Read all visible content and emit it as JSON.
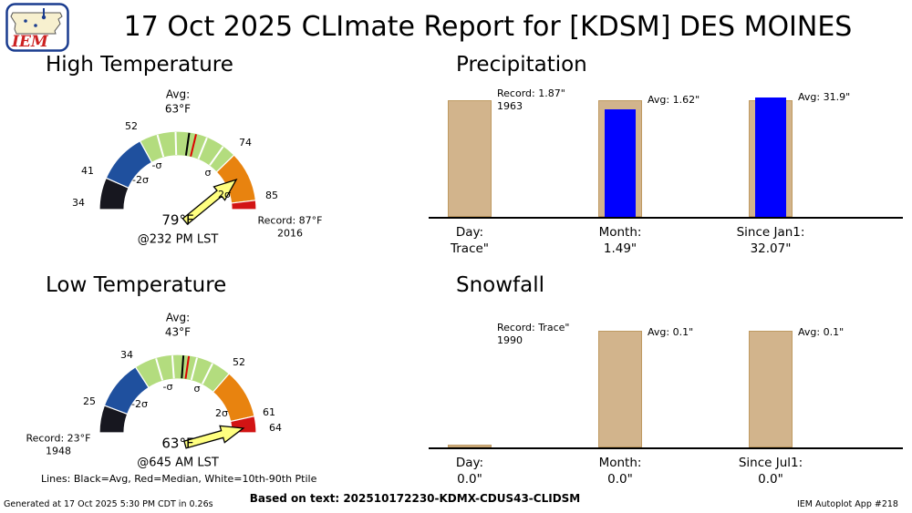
{
  "page": {
    "logo_text": "IEM",
    "title": "17 Oct 2025 CLImate Report for [KDSM] DES MOINES",
    "legend_note": "Lines: Black=Avg, Red=Median, White=10th-90th Ptile",
    "footer_left": "Generated at 17 Oct 2025 5:30 PM CDT in 0.26s",
    "footer_center": "Based on text: 202510172230-KDMX-CDUS43-CLIDSM",
    "footer_right": "IEM Autoplot App #218"
  },
  "colors": {
    "below_2sigma": "#17171f",
    "sigma_band_low": "#1f509e",
    "normal_band": "#b3dc7e",
    "sigma_band_high": "#e8830f",
    "above_2sigma": "#d21414",
    "reference_bar": "#d2b48c",
    "actual_bar": "#0000ff",
    "needle": "#ffff80",
    "avg_line": "#000000",
    "median_line": "#dd0000",
    "ptile_line": "#ffffff"
  },
  "chart_data": [
    {
      "id": "high_temperature",
      "type": "gauge",
      "title": "High Temperature",
      "unit": "°F",
      "value": 79,
      "value_label": "79°F",
      "time_label": "@232 PM LST",
      "avg_value": 63,
      "avg_line1": "Avg:",
      "avg_line2": "63°F",
      "record_value": 87,
      "record_label": "Record: 87°F",
      "record_year": "2016",
      "scale_labels": [
        "34",
        "41",
        "52",
        "74",
        "85"
      ],
      "sigma_labels": [
        "-2σ",
        "-σ",
        "σ",
        "2σ"
      ],
      "range": [
        34,
        87
      ],
      "segments": [
        {
          "from": 34,
          "to": 41,
          "color": "#17171f"
        },
        {
          "from": 41,
          "to": 52,
          "color": "#1f509e"
        },
        {
          "from": 52,
          "to": 74,
          "color": "#b3dc7e"
        },
        {
          "from": 74,
          "to": 85,
          "color": "#e8830f"
        },
        {
          "from": 85,
          "to": 87,
          "color": "#d21414"
        }
      ],
      "lines": [
        {
          "at": 56,
          "color": "#ffffff",
          "width": 2
        },
        {
          "at": 60,
          "color": "#ffffff",
          "width": 2
        },
        {
          "at": 67,
          "color": "#ffffff",
          "width": 2
        },
        {
          "at": 71,
          "color": "#ffffff",
          "width": 2
        },
        {
          "at": 63,
          "color": "#000000",
          "width": 2
        },
        {
          "at": 64.5,
          "color": "#dd0000",
          "width": 2
        }
      ]
    },
    {
      "id": "precipitation",
      "type": "bar",
      "title": "Precipitation",
      "normalized_per_group": true,
      "groups": [
        {
          "category": "Day:",
          "value_label": "Trace\"",
          "actual_value": "Trace",
          "reference_type": "Record",
          "reference_value": 1.87,
          "reference_year": "1963",
          "note_line1": "Record: 1.87\"",
          "note_line2": "1963",
          "ref_frac": 1.0,
          "act_frac": 0
        },
        {
          "category": "Month:",
          "value_label": "1.49\"",
          "actual_value": 1.49,
          "reference_type": "Avg",
          "reference_value": 1.62,
          "note_line1": "Avg: 1.62\"",
          "ref_frac": 1.0,
          "act_frac": 0.92
        },
        {
          "category": "Since Jan1:",
          "value_label": "32.07\"",
          "actual_value": 32.07,
          "reference_type": "Avg",
          "reference_value": 31.9,
          "note_line1": "Avg: 31.9\"",
          "ref_frac": 1.0,
          "act_frac": 1.02
        }
      ]
    },
    {
      "id": "low_temperature",
      "type": "gauge",
      "title": "Low Temperature",
      "unit": "°F",
      "value": 63,
      "value_label": "63°F",
      "time_label": "@645 AM LST",
      "avg_value": 43,
      "avg_line1": "Avg:",
      "avg_line2": "43°F",
      "record_value": 23,
      "record_label": "Record: 23°F",
      "record_year": "1948",
      "scale_labels": [
        "25",
        "34",
        "52",
        "61",
        "64"
      ],
      "sigma_labels": [
        "-2σ",
        "-σ",
        "σ",
        "2σ"
      ],
      "range": [
        20,
        64
      ],
      "segments": [
        {
          "from": 20,
          "to": 25,
          "color": "#17171f"
        },
        {
          "from": 25,
          "to": 34,
          "color": "#1f509e"
        },
        {
          "from": 34,
          "to": 52,
          "color": "#b3dc7e"
        },
        {
          "from": 52,
          "to": 61,
          "color": "#e8830f"
        },
        {
          "from": 61,
          "to": 64,
          "color": "#d21414"
        }
      ],
      "lines": [
        {
          "at": 38,
          "color": "#ffffff",
          "width": 2
        },
        {
          "at": 41,
          "color": "#ffffff",
          "width": 2
        },
        {
          "at": 45.5,
          "color": "#ffffff",
          "width": 2
        },
        {
          "at": 48.5,
          "color": "#ffffff",
          "width": 2
        },
        {
          "at": 43,
          "color": "#000000",
          "width": 2
        },
        {
          "at": 44,
          "color": "#dd0000",
          "width": 2
        }
      ]
    },
    {
      "id": "snowfall",
      "type": "bar",
      "title": "Snowfall",
      "normalized_per_group": true,
      "groups": [
        {
          "category": "Day:",
          "value_label": "0.0\"",
          "actual_value": 0.0,
          "reference_type": "Record",
          "reference_value": "Trace",
          "reference_year": "1990",
          "note_line1": "Record: Trace\"",
          "note_line2": "1990",
          "ref_frac": 0.022,
          "act_frac": 0
        },
        {
          "category": "Month:",
          "value_label": "0.0\"",
          "actual_value": 0.0,
          "reference_type": "Avg",
          "reference_value": 0.1,
          "note_line1": "Avg: 0.1\"",
          "ref_frac": 1.0,
          "act_frac": 0
        },
        {
          "category": "Since Jul1:",
          "value_label": "0.0\"",
          "actual_value": 0.0,
          "reference_type": "Avg",
          "reference_value": 0.1,
          "note_line1": "Avg: 0.1\"",
          "ref_frac": 1.0,
          "act_frac": 0
        }
      ]
    }
  ]
}
